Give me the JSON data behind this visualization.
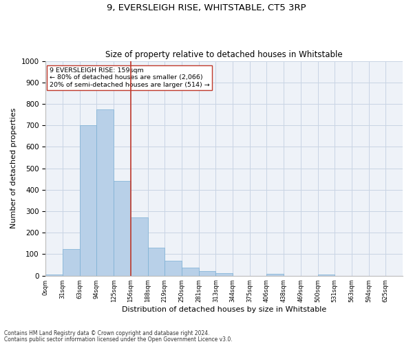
{
  "title1": "9, EVERSLEIGH RISE, WHITSTABLE, CT5 3RP",
  "title2": "Size of property relative to detached houses in Whitstable",
  "xlabel": "Distribution of detached houses by size in Whitstable",
  "ylabel": "Number of detached properties",
  "footer1": "Contains HM Land Registry data © Crown copyright and database right 2024.",
  "footer2": "Contains public sector information licensed under the Open Government Licence v3.0.",
  "annotation_line1": "9 EVERSLEIGH RISE: 159sqm",
  "annotation_line2": "← 80% of detached houses are smaller (2,066)",
  "annotation_line3": "20% of semi-detached houses are larger (514) →",
  "bar_labels": [
    "0sqm",
    "31sqm",
    "63sqm",
    "94sqm",
    "125sqm",
    "156sqm",
    "188sqm",
    "219sqm",
    "250sqm",
    "281sqm",
    "313sqm",
    "344sqm",
    "375sqm",
    "406sqm",
    "438sqm",
    "469sqm",
    "500sqm",
    "531sqm",
    "563sqm",
    "594sqm",
    "625sqm"
  ],
  "bar_values": [
    5,
    125,
    700,
    775,
    440,
    270,
    130,
    68,
    38,
    20,
    12,
    0,
    0,
    10,
    0,
    0,
    5,
    0,
    0,
    0,
    0
  ],
  "bar_color": "#b8d0e8",
  "bar_edge_color": "#7aafd4",
  "vline_x": 5,
  "vline_color": "#c0392b",
  "ylim": [
    0,
    1000
  ],
  "yticks": [
    0,
    100,
    200,
    300,
    400,
    500,
    600,
    700,
    800,
    900,
    1000
  ],
  "grid_color": "#c8d4e4",
  "bg_color": "#eef2f8",
  "title1_fontsize": 9.5,
  "title2_fontsize": 8.5,
  "xlabel_fontsize": 8,
  "ylabel_fontsize": 8,
  "figsize": [
    6.0,
    5.0
  ],
  "dpi": 100
}
